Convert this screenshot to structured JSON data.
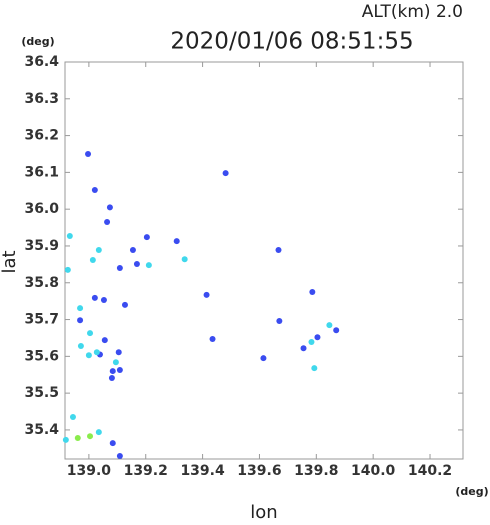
{
  "chart_data": {
    "type": "scatter",
    "title": "2020/01/06 08:51:55",
    "subtitle": "ALT(km) 2.0",
    "x_label": "lon",
    "y_label": "lat",
    "x_unit": "(deg)",
    "y_unit": "(deg)",
    "xlim": [
      138.916,
      140.316
    ],
    "ylim": [
      35.321,
      36.4
    ],
    "xticks": [
      {
        "value": 139.0,
        "label": "139.0"
      },
      139.2,
      139.4,
      139.6,
      139.8,
      {
        "value": 140.0,
        "label": "140.0"
      },
      140.2
    ],
    "yticks": [
      35.4,
      35.5,
      35.6,
      35.7,
      35.8,
      35.9,
      {
        "value": 36.0,
        "label": "36.0"
      },
      36.1,
      36.2,
      36.3,
      36.4
    ],
    "series": [
      {
        "color": "#3a4cf0",
        "x": [
          138.997,
          139.021,
          139.074,
          139.064,
          139.204,
          139.309,
          139.155,
          139.481,
          139.169,
          139.109,
          139.021,
          139.053,
          139.127,
          139.414,
          139.786,
          139.67,
          139.87,
          139.804,
          139.755,
          139.614,
          139.435,
          139.056,
          139.105,
          139.084,
          139.109,
          139.081,
          139.084,
          139.109,
          139.039,
          138.969,
          139.667
        ],
        "values": [
          36.15,
          36.052,
          36.005,
          35.965,
          35.924,
          35.913,
          35.889,
          36.098,
          35.851,
          35.84,
          35.759,
          35.753,
          35.74,
          35.767,
          35.775,
          35.696,
          35.671,
          35.652,
          35.622,
          35.595,
          35.647,
          35.644,
          35.611,
          35.56,
          35.563,
          35.541,
          35.364,
          35.329,
          35.605,
          35.698,
          35.889
        ]
      },
      {
        "color": "#40d8ec",
        "x": [
          138.933,
          139.035,
          139.014,
          138.926,
          138.969,
          139.004,
          138.972,
          139.028,
          139.0,
          139.095,
          138.944,
          139.035,
          139.846,
          139.783,
          139.793,
          139.337,
          139.211,
          138.919
        ],
        "values": [
          35.927,
          35.889,
          35.862,
          35.835,
          35.731,
          35.663,
          35.628,
          35.611,
          35.603,
          35.584,
          35.435,
          35.394,
          35.685,
          35.639,
          35.568,
          35.864,
          35.848,
          35.373
        ]
      },
      {
        "color": "#8aec4c",
        "x": [
          138.961,
          139.004
        ],
        "values": [
          35.378,
          35.383
        ]
      }
    ]
  }
}
